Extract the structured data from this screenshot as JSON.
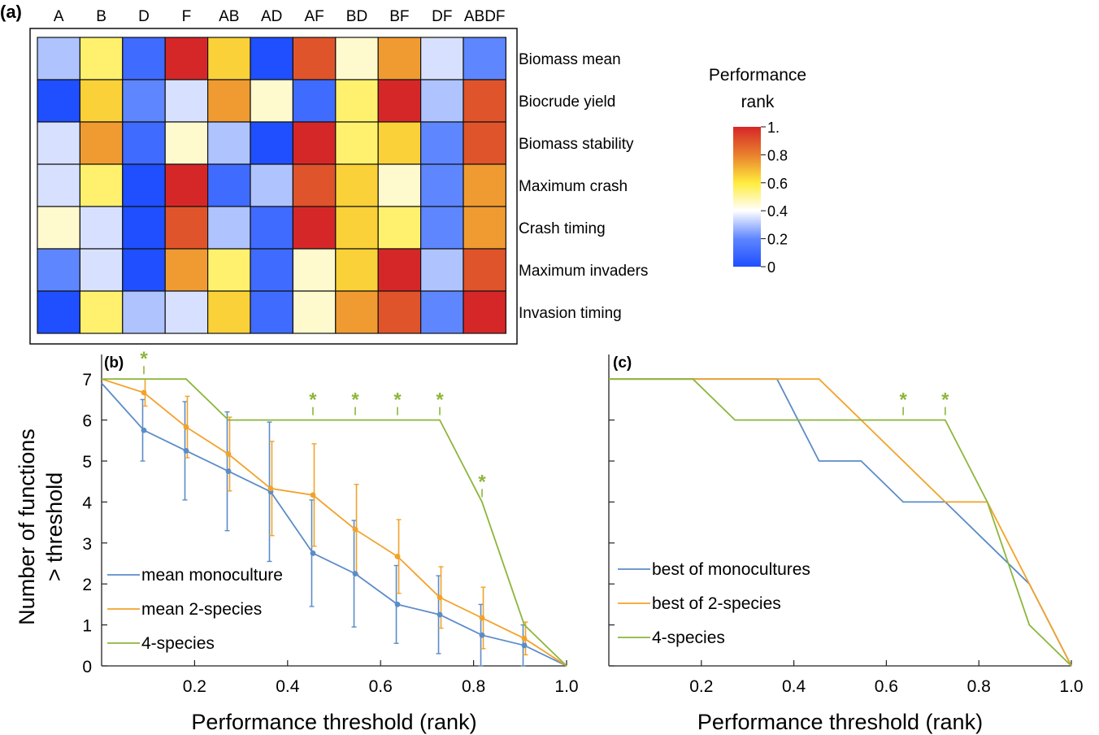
{
  "figure": {
    "panel_a": "(a)",
    "panel_b": "(b)",
    "panel_c": "(c)"
  },
  "chart_data": [
    {
      "type": "heatmap",
      "panel": "(a)",
      "columns": [
        "A",
        "B",
        "D",
        "F",
        "AB",
        "AD",
        "AF",
        "BD",
        "BF",
        "DF",
        "ABDF"
      ],
      "rows": [
        "Biomass mean",
        "Biocrude yield",
        "Biomass stability",
        "Maximum crash",
        "Crash timing",
        "Maximum invaders",
        "Invasion timing"
      ],
      "values": [
        [
          0.3,
          0.55,
          0.1,
          1.0,
          0.65,
          0.0,
          0.9,
          0.45,
          0.75,
          0.35,
          0.2
        ],
        [
          0.0,
          0.65,
          0.2,
          0.35,
          0.75,
          0.45,
          0.1,
          0.55,
          1.0,
          0.3,
          0.9
        ],
        [
          0.35,
          0.75,
          0.1,
          0.45,
          0.3,
          0.0,
          1.0,
          0.55,
          0.65,
          0.2,
          0.9
        ],
        [
          0.35,
          0.55,
          0.0,
          1.0,
          0.1,
          0.3,
          0.9,
          0.65,
          0.45,
          0.2,
          0.75
        ],
        [
          0.45,
          0.35,
          0.0,
          0.9,
          0.3,
          0.1,
          1.0,
          0.65,
          0.55,
          0.2,
          0.75
        ],
        [
          0.2,
          0.35,
          0.0,
          0.75,
          0.55,
          0.1,
          0.45,
          0.65,
          1.0,
          0.3,
          0.9
        ],
        [
          0.0,
          0.55,
          0.3,
          0.35,
          0.65,
          0.1,
          0.45,
          0.75,
          0.9,
          0.2,
          1.0
        ]
      ],
      "colorbar": {
        "title": "Performance rank",
        "title_lines": [
          "Performance",
          "rank"
        ],
        "ticks": [
          "1.",
          "0.8",
          "0.6",
          "0.4",
          "0.2",
          "0"
        ],
        "colors": {
          "high": "#d62728",
          "mid": "#ffffff",
          "low": "#1f4fff"
        }
      }
    },
    {
      "type": "line",
      "panel": "(b)",
      "xlabel": "Performance threshold (rank)",
      "ylabel": "Number of functions > threshold",
      "ylabel_lines": [
        "Number of functions",
        "> threshold"
      ],
      "xlim": [
        0.0,
        1.0
      ],
      "ylim": [
        0,
        7.6
      ],
      "xticks": [
        "0.2",
        "0.4",
        "0.6",
        "0.8",
        "1.0"
      ],
      "yticks": [
        "0",
        "1",
        "2",
        "3",
        "4",
        "5",
        "6",
        "7"
      ],
      "series": [
        {
          "name": "mean monoculture",
          "color": "#5b8cc8",
          "x": [
            0.0,
            0.0909,
            0.1818,
            0.2727,
            0.3636,
            0.4545,
            0.5455,
            0.6364,
            0.7273,
            0.8182,
            0.9091,
            1.0
          ],
          "y": [
            6.9,
            5.75,
            5.25,
            4.75,
            4.25,
            2.75,
            2.25,
            1.5,
            1.25,
            0.75,
            0.5,
            0.0
          ],
          "err": [
            0,
            0.75,
            1.2,
            1.45,
            1.7,
            1.3,
            1.3,
            0.95,
            0.95,
            0.75,
            0.5,
            0
          ]
        },
        {
          "name": "mean 2-species",
          "color": "#f2a22a",
          "x": [
            0.0,
            0.0909,
            0.1818,
            0.2727,
            0.3636,
            0.4545,
            0.5455,
            0.6364,
            0.7273,
            0.8182,
            0.9091,
            1.0
          ],
          "y": [
            7.0,
            6.67,
            5.83,
            5.17,
            4.33,
            4.17,
            3.33,
            2.67,
            1.67,
            1.17,
            0.67,
            0.0
          ],
          "err": [
            0,
            0.33,
            0.75,
            0.9,
            1.15,
            1.25,
            1.1,
            0.9,
            0.75,
            0.75,
            0.4,
            0
          ]
        },
        {
          "name": "4-species",
          "color": "#8db63c",
          "x": [
            0.0,
            0.0909,
            0.1818,
            0.2727,
            0.3636,
            0.4545,
            0.5455,
            0.6364,
            0.7273,
            0.8182,
            0.9091,
            1.0
          ],
          "y": [
            7,
            7,
            7,
            6,
            6,
            6,
            6,
            6,
            6,
            4,
            1,
            0
          ]
        }
      ],
      "significance": {
        "symbol": "*",
        "x": [
          0.0909,
          0.4545,
          0.5455,
          0.6364,
          0.7273,
          0.8182
        ],
        "y": [
          7,
          6,
          6,
          6,
          6,
          4
        ],
        "color": "#8db63c"
      }
    },
    {
      "type": "line",
      "panel": "(c)",
      "xlabel": "Performance threshold (rank)",
      "xlim": [
        0.0,
        1.0
      ],
      "ylim": [
        0,
        7.6
      ],
      "xticks": [
        "0.2",
        "0.4",
        "0.6",
        "0.8",
        "1.0"
      ],
      "series": [
        {
          "name": "best of monocultures",
          "color": "#5b8cc8",
          "x": [
            0.0,
            0.0909,
            0.1818,
            0.2727,
            0.3636,
            0.4545,
            0.5455,
            0.6364,
            0.7273,
            0.8182,
            0.9091,
            1.0
          ],
          "y": [
            7,
            7,
            7,
            7,
            7,
            5,
            5,
            4,
            4,
            3,
            2,
            0
          ]
        },
        {
          "name": "best of 2-species",
          "color": "#f2a22a",
          "x": [
            0.0,
            0.0909,
            0.1818,
            0.2727,
            0.3636,
            0.4545,
            0.5455,
            0.6364,
            0.7273,
            0.8182,
            0.9091,
            1.0
          ],
          "y": [
            7,
            7,
            7,
            7,
            7,
            7,
            6,
            5,
            4,
            4,
            2,
            0
          ]
        },
        {
          "name": "4-species",
          "color": "#8db63c",
          "x": [
            0.0,
            0.0909,
            0.1818,
            0.2727,
            0.3636,
            0.4545,
            0.5455,
            0.6364,
            0.7273,
            0.8182,
            0.9091,
            1.0
          ],
          "y": [
            7,
            7,
            7,
            6,
            6,
            6,
            6,
            6,
            6,
            4,
            1,
            0
          ]
        }
      ],
      "significance": {
        "symbol": "*",
        "x": [
          0.6364,
          0.7273
        ],
        "y": [
          6,
          6
        ],
        "color": "#8db63c"
      }
    }
  ]
}
